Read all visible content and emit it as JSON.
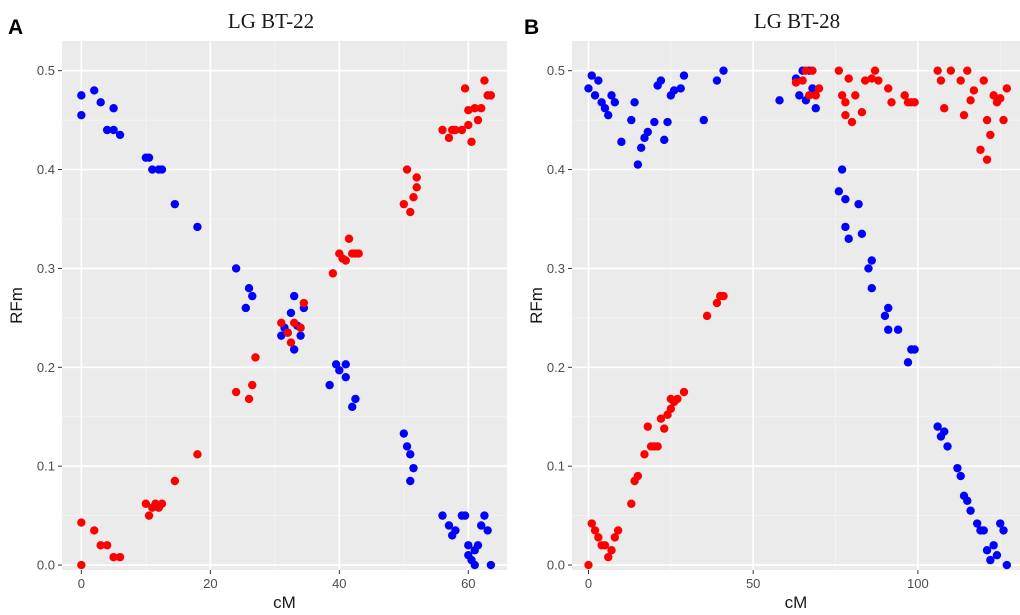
{
  "chart_data": [
    {
      "panel": "A",
      "type": "scatter",
      "title": "LG BT-22",
      "xlabel": "cM",
      "ylabel": "RFm",
      "xlim": [
        -3,
        66
      ],
      "ylim": [
        -0.005,
        0.53
      ],
      "xticks": [
        0,
        20,
        40,
        60
      ],
      "yticks": [
        0.0,
        0.1,
        0.2,
        0.3,
        0.4,
        0.5
      ],
      "ytick_labels": [
        "0.0",
        "0.1",
        "0.2",
        "0.3",
        "0.4",
        "0.5"
      ],
      "grid": true,
      "series": [
        {
          "color": "#0000ff",
          "points": [
            [
              0,
              0.475
            ],
            [
              0,
              0.455
            ],
            [
              2,
              0.48
            ],
            [
              3,
              0.468
            ],
            [
              4,
              0.44
            ],
            [
              5,
              0.44
            ],
            [
              5,
              0.462
            ],
            [
              6,
              0.435
            ],
            [
              10,
              0.412
            ],
            [
              10.5,
              0.412
            ],
            [
              11,
              0.4
            ],
            [
              12,
              0.4
            ],
            [
              12.5,
              0.4
            ],
            [
              14.5,
              0.365
            ],
            [
              18,
              0.342
            ],
            [
              24,
              0.3
            ],
            [
              25.5,
              0.26
            ],
            [
              26,
              0.28
            ],
            [
              26.5,
              0.272
            ],
            [
              31,
              0.232
            ],
            [
              31.5,
              0.24
            ],
            [
              32,
              0.235
            ],
            [
              32.5,
              0.255
            ],
            [
              33,
              0.272
            ],
            [
              33,
              0.218
            ],
            [
              33.5,
              0.242
            ],
            [
              34,
              0.232
            ],
            [
              34.5,
              0.26
            ],
            [
              38.5,
              0.182
            ],
            [
              39.5,
              0.203
            ],
            [
              40,
              0.197
            ],
            [
              41,
              0.203
            ],
            [
              41,
              0.19
            ],
            [
              42,
              0.16
            ],
            [
              42.5,
              0.168
            ],
            [
              50,
              0.133
            ],
            [
              50.5,
              0.12
            ],
            [
              51,
              0.085
            ],
            [
              51,
              0.112
            ],
            [
              51.5,
              0.098
            ],
            [
              56,
              0.05
            ],
            [
              57,
              0.04
            ],
            [
              57.5,
              0.03
            ],
            [
              58,
              0.035
            ],
            [
              59,
              0.05
            ],
            [
              59.5,
              0.05
            ],
            [
              60,
              0.02
            ],
            [
              60,
              0.01
            ],
            [
              60.5,
              0.005
            ],
            [
              61,
              0.015
            ],
            [
              61,
              0.0
            ],
            [
              61.5,
              0.02
            ],
            [
              62,
              0.04
            ],
            [
              62.5,
              0.05
            ],
            [
              63,
              0.035
            ],
            [
              63.5,
              0.0
            ]
          ]
        },
        {
          "color": "#ff0000",
          "points": [
            [
              0,
              0.043
            ],
            [
              0,
              0.0
            ],
            [
              2,
              0.035
            ],
            [
              3,
              0.02
            ],
            [
              4,
              0.02
            ],
            [
              5,
              0.008
            ],
            [
              6,
              0.008
            ],
            [
              10,
              0.062
            ],
            [
              10.5,
              0.05
            ],
            [
              11,
              0.058
            ],
            [
              11.5,
              0.062
            ],
            [
              12,
              0.058
            ],
            [
              12.5,
              0.062
            ],
            [
              14.5,
              0.085
            ],
            [
              18,
              0.112
            ],
            [
              24,
              0.175
            ],
            [
              26,
              0.168
            ],
            [
              26.5,
              0.182
            ],
            [
              27,
              0.21
            ],
            [
              31,
              0.245
            ],
            [
              32,
              0.235
            ],
            [
              32.5,
              0.225
            ],
            [
              33,
              0.245
            ],
            [
              34,
              0.24
            ],
            [
              34.5,
              0.265
            ],
            [
              39,
              0.295
            ],
            [
              40,
              0.315
            ],
            [
              40.5,
              0.31
            ],
            [
              41,
              0.308
            ],
            [
              41.5,
              0.33
            ],
            [
              42,
              0.315
            ],
            [
              42.5,
              0.315
            ],
            [
              43,
              0.315
            ],
            [
              50,
              0.365
            ],
            [
              50.5,
              0.4
            ],
            [
              51,
              0.357
            ],
            [
              51.5,
              0.372
            ],
            [
              52,
              0.382
            ],
            [
              52,
              0.392
            ],
            [
              56,
              0.44
            ],
            [
              57,
              0.432
            ],
            [
              57.5,
              0.44
            ],
            [
              58,
              0.44
            ],
            [
              59,
              0.44
            ],
            [
              59.5,
              0.482
            ],
            [
              60,
              0.46
            ],
            [
              60,
              0.445
            ],
            [
              60.5,
              0.428
            ],
            [
              61,
              0.462
            ],
            [
              61.5,
              0.45
            ],
            [
              62,
              0.462
            ],
            [
              62.5,
              0.49
            ],
            [
              63,
              0.475
            ],
            [
              63.5,
              0.475
            ]
          ]
        }
      ]
    },
    {
      "panel": "B",
      "type": "scatter",
      "title": "LG BT-28",
      "xlabel": "cM",
      "ylabel": "RFm",
      "xlim": [
        -5,
        131
      ],
      "ylim": [
        -0.005,
        0.53
      ],
      "xticks": [
        0,
        50,
        100
      ],
      "yticks": [
        0.0,
        0.1,
        0.2,
        0.3,
        0.4,
        0.5
      ],
      "ytick_labels": [
        "0.0",
        "0.1",
        "0.2",
        "0.3",
        "0.4",
        "0.5"
      ],
      "grid": true,
      "series": [
        {
          "color": "#0000ff",
          "points": [
            [
              0,
              0.482
            ],
            [
              1,
              0.495
            ],
            [
              2,
              0.475
            ],
            [
              3,
              0.49
            ],
            [
              4,
              0.468
            ],
            [
              5,
              0.462
            ],
            [
              6,
              0.455
            ],
            [
              7,
              0.475
            ],
            [
              8,
              0.468
            ],
            [
              10,
              0.428
            ],
            [
              13,
              0.45
            ],
            [
              14,
              0.468
            ],
            [
              15,
              0.405
            ],
            [
              16,
              0.422
            ],
            [
              17,
              0.432
            ],
            [
              18,
              0.438
            ],
            [
              20,
              0.448
            ],
            [
              21,
              0.485
            ],
            [
              22,
              0.49
            ],
            [
              23,
              0.43
            ],
            [
              24,
              0.448
            ],
            [
              25,
              0.475
            ],
            [
              26,
              0.48
            ],
            [
              28,
              0.482
            ],
            [
              29,
              0.495
            ],
            [
              35,
              0.45
            ],
            [
              39,
              0.49
            ],
            [
              41,
              0.5
            ],
            [
              58,
              0.47
            ],
            [
              63,
              0.492
            ],
            [
              64,
              0.475
            ],
            [
              65,
              0.5
            ],
            [
              66,
              0.47
            ],
            [
              67,
              0.5
            ],
            [
              68,
              0.482
            ],
            [
              69,
              0.462
            ],
            [
              76,
              0.378
            ],
            [
              77,
              0.4
            ],
            [
              78,
              0.37
            ],
            [
              78,
              0.342
            ],
            [
              79,
              0.33
            ],
            [
              82,
              0.365
            ],
            [
              83,
              0.335
            ],
            [
              85,
              0.3
            ],
            [
              86,
              0.308
            ],
            [
              86,
              0.28
            ],
            [
              90,
              0.252
            ],
            [
              91,
              0.26
            ],
            [
              91,
              0.238
            ],
            [
              94,
              0.238
            ],
            [
              97,
              0.205
            ],
            [
              98,
              0.218
            ],
            [
              99,
              0.218
            ],
            [
              106,
              0.14
            ],
            [
              107,
              0.13
            ],
            [
              108,
              0.135
            ],
            [
              109,
              0.12
            ],
            [
              112,
              0.098
            ],
            [
              113,
              0.09
            ],
            [
              114,
              0.07
            ],
            [
              115,
              0.065
            ],
            [
              116,
              0.055
            ],
            [
              118,
              0.042
            ],
            [
              119,
              0.035
            ],
            [
              120,
              0.035
            ],
            [
              121,
              0.015
            ],
            [
              122,
              0.005
            ],
            [
              123,
              0.02
            ],
            [
              124,
              0.01
            ],
            [
              125,
              0.042
            ],
            [
              126,
              0.035
            ],
            [
              127,
              0.0
            ]
          ]
        },
        {
          "color": "#ff0000",
          "points": [
            [
              0,
              0.0
            ],
            [
              1,
              0.042
            ],
            [
              2,
              0.035
            ],
            [
              3,
              0.028
            ],
            [
              4,
              0.02
            ],
            [
              5,
              0.02
            ],
            [
              6,
              0.008
            ],
            [
              7,
              0.015
            ],
            [
              8,
              0.028
            ],
            [
              9,
              0.035
            ],
            [
              13,
              0.062
            ],
            [
              14,
              0.085
            ],
            [
              15,
              0.09
            ],
            [
              17,
              0.112
            ],
            [
              18,
              0.14
            ],
            [
              19,
              0.12
            ],
            [
              20,
              0.12
            ],
            [
              21,
              0.12
            ],
            [
              22,
              0.148
            ],
            [
              23,
              0.138
            ],
            [
              24,
              0.152
            ],
            [
              25,
              0.168
            ],
            [
              25,
              0.158
            ],
            [
              26,
              0.165
            ],
            [
              27,
              0.168
            ],
            [
              29,
              0.175
            ],
            [
              36,
              0.252
            ],
            [
              39,
              0.265
            ],
            [
              40,
              0.272
            ],
            [
              41,
              0.272
            ],
            [
              63,
              0.488
            ],
            [
              65,
              0.49
            ],
            [
              66,
              0.5
            ],
            [
              67,
              0.475
            ],
            [
              68,
              0.5
            ],
            [
              69,
              0.475
            ],
            [
              70,
              0.482
            ],
            [
              76,
              0.5
            ],
            [
              77,
              0.475
            ],
            [
              78,
              0.468
            ],
            [
              78,
              0.455
            ],
            [
              79,
              0.492
            ],
            [
              80,
              0.448
            ],
            [
              81,
              0.475
            ],
            [
              83,
              0.458
            ],
            [
              84,
              0.49
            ],
            [
              86,
              0.492
            ],
            [
              87,
              0.5
            ],
            [
              88,
              0.49
            ],
            [
              91,
              0.482
            ],
            [
              92,
              0.468
            ],
            [
              96,
              0.475
            ],
            [
              97,
              0.468
            ],
            [
              98,
              0.468
            ],
            [
              99,
              0.468
            ],
            [
              106,
              0.5
            ],
            [
              107,
              0.49
            ],
            [
              108,
              0.462
            ],
            [
              110,
              0.5
            ],
            [
              113,
              0.49
            ],
            [
              114,
              0.455
            ],
            [
              115,
              0.5
            ],
            [
              116,
              0.47
            ],
            [
              117,
              0.48
            ],
            [
              119,
              0.42
            ],
            [
              120,
              0.49
            ],
            [
              121,
              0.41
            ],
            [
              121,
              0.45
            ],
            [
              122,
              0.435
            ],
            [
              123,
              0.475
            ],
            [
              124,
              0.468
            ],
            [
              125,
              0.472
            ],
            [
              126,
              0.45
            ],
            [
              127,
              0.482
            ]
          ]
        }
      ]
    }
  ]
}
